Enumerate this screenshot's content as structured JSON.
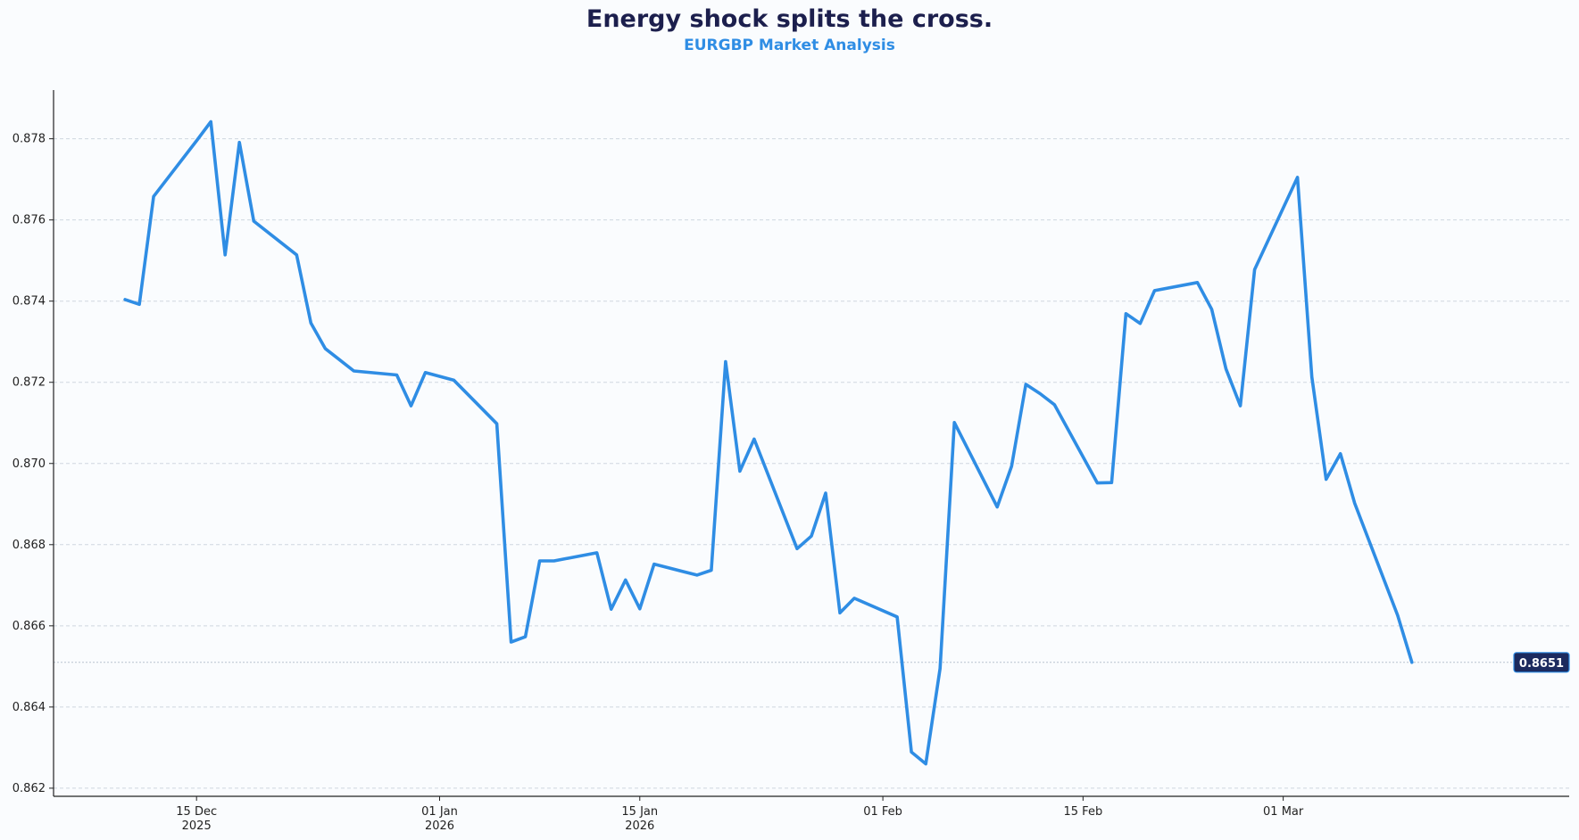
{
  "chart_data": {
    "type": "line",
    "title": "Energy shock splits the cross.",
    "subtitle": "EURGBP Market Analysis",
    "xlabel": "",
    "ylabel": "",
    "ylim": [
      0.8618,
      0.8792
    ],
    "xlim": [
      "2025-12-05",
      "2026-03-21"
    ],
    "y_ticks": [
      0.862,
      0.864,
      0.866,
      0.868,
      0.87,
      0.872,
      0.874,
      0.876,
      0.878
    ],
    "x_ticks": [
      {
        "date": "2025-12-15",
        "line1": "15 Dec",
        "line2": "2025"
      },
      {
        "date": "2026-01-01",
        "line1": "01 Jan",
        "line2": "2026"
      },
      {
        "date": "2026-01-15",
        "line1": "15 Jan",
        "line2": "2026"
      },
      {
        "date": "2026-02-01",
        "line1": "01 Feb",
        "line2": ""
      },
      {
        "date": "2026-02-15",
        "line1": "15 Feb",
        "line2": ""
      },
      {
        "date": "2026-03-01",
        "line1": "01 Mar",
        "line2": ""
      }
    ],
    "grid": "horizontal dashed",
    "last_value_label": "0.8651",
    "colors": {
      "line": "#2f8de4",
      "title": "#1c1f4d",
      "subtitle": "#2f8de4",
      "badge": "#1c2a5e"
    },
    "series": [
      {
        "x": [
          "2025-12-10",
          "2025-12-11",
          "2025-12-12",
          "2025-12-15",
          "2025-12-16",
          "2025-12-17",
          "2025-12-18",
          "2025-12-19",
          "2025-12-22",
          "2025-12-23",
          "2025-12-24",
          "2025-12-26",
          "2025-12-29",
          "2025-12-30",
          "2025-12-31",
          "2026-01-02",
          "2026-01-05",
          "2026-01-06",
          "2026-01-07",
          "2026-01-08",
          "2026-01-09",
          "2026-01-12",
          "2026-01-13",
          "2026-01-14",
          "2026-01-15",
          "2026-01-16",
          "2026-01-19",
          "2026-01-20",
          "2026-01-21",
          "2026-01-22",
          "2026-01-23",
          "2026-01-26",
          "2026-01-27",
          "2026-01-28",
          "2026-01-29",
          "2026-01-30",
          "2026-02-02",
          "2026-02-03",
          "2026-02-04",
          "2026-02-05",
          "2026-02-06",
          "2026-02-09",
          "2026-02-10",
          "2026-02-11",
          "2026-02-12",
          "2026-02-13",
          "2026-02-16",
          "2026-02-17",
          "2026-02-18",
          "2026-02-19",
          "2026-02-20",
          "2026-02-23",
          "2026-02-24",
          "2026-02-25",
          "2026-02-26",
          "2026-02-27",
          "2026-03-02",
          "2026-03-03",
          "2026-03-04",
          "2026-03-05",
          "2026-03-06",
          "2026-03-09",
          "2026-03-10"
        ],
        "y": [
          0.87404,
          0.87392,
          0.87658,
          0.87795,
          0.87842,
          0.87514,
          0.87791,
          0.87597,
          0.87514,
          0.87346,
          0.87283,
          0.87228,
          0.87218,
          0.87142,
          0.87224,
          0.87205,
          0.87098,
          0.8656,
          0.86573,
          0.8676,
          0.8676,
          0.8678,
          0.86641,
          0.86713,
          0.86642,
          0.86752,
          0.86725,
          0.86737,
          0.87251,
          0.86981,
          0.8706,
          0.8679,
          0.86821,
          0.86927,
          0.86632,
          0.86668,
          0.86622,
          0.86289,
          0.8626,
          0.86495,
          0.87101,
          0.86893,
          0.86993,
          0.87195,
          0.87172,
          0.87145,
          0.86952,
          0.86953,
          0.87369,
          0.87345,
          0.87426,
          0.87446,
          0.8738,
          0.87233,
          0.87142,
          0.87478,
          0.87705,
          0.87213,
          0.86961,
          0.87024,
          0.86902,
          0.86626,
          0.8651
        ]
      }
    ]
  }
}
